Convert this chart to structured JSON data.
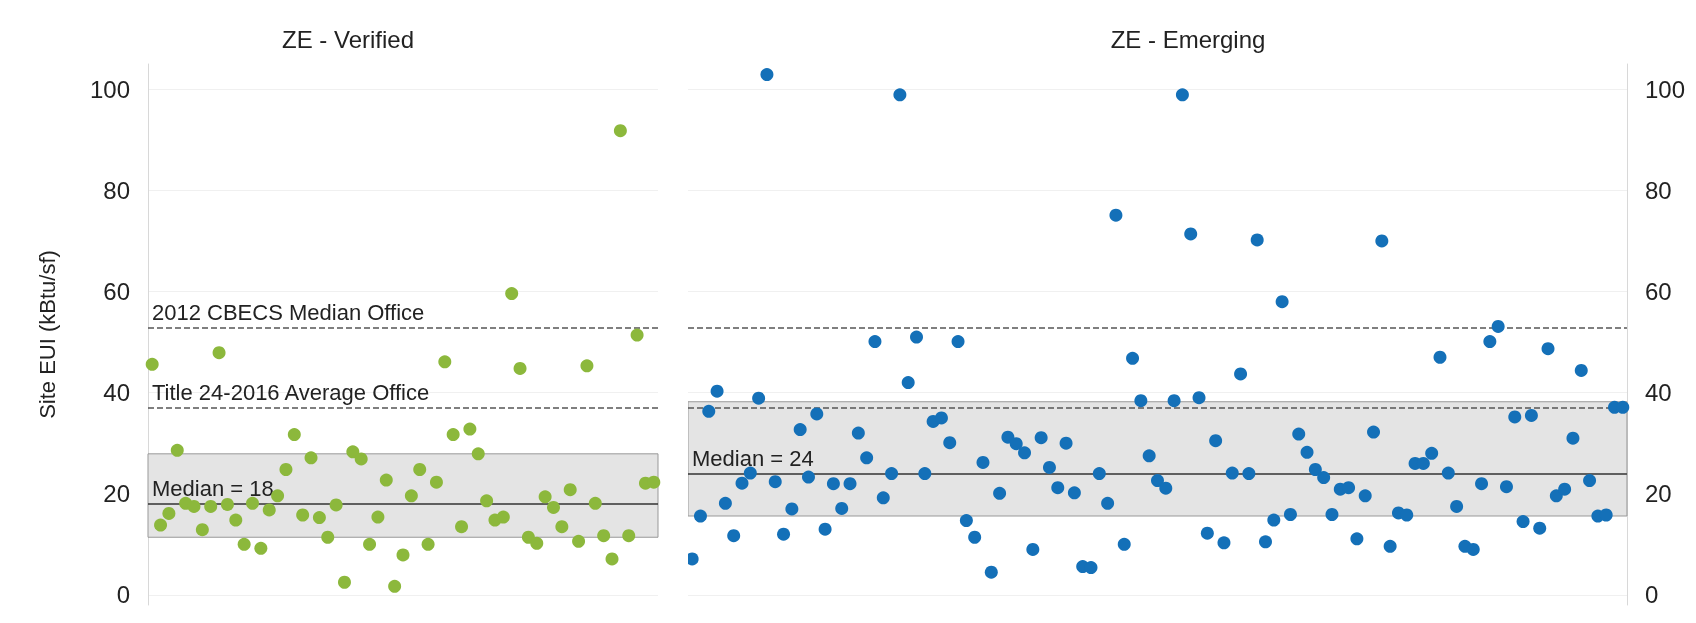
{
  "chart_data": [
    {
      "type": "scatter",
      "title": "ZE - Verified",
      "ylabel": "Site EUI (kBtu/sf)",
      "ylim": [
        -2,
        105
      ],
      "yticks": [
        0,
        20,
        40,
        60,
        80,
        100
      ],
      "grid": "y",
      "tick_labels": "y",
      "marker": "circle",
      "categories": [
        null,
        null,
        null,
        null,
        null,
        null,
        null,
        null,
        null,
        null,
        null,
        null,
        null,
        null,
        null,
        null,
        null,
        null,
        null,
        null,
        null,
        null,
        null,
        null,
        null,
        null,
        null,
        null,
        null,
        null,
        null,
        null,
        null,
        null,
        null,
        null,
        null,
        null,
        null,
        null,
        null,
        null,
        null,
        null,
        null,
        null,
        null,
        null,
        null,
        null,
        null,
        null,
        null,
        null,
        null,
        null,
        null,
        null,
        null,
        null,
        null
      ],
      "series": [
        {
          "color": "#8cb83c",
          "values": [
            45.6,
            13.8,
            16.1,
            28.6,
            18.1,
            17.5,
            12.9,
            17.5,
            47.9,
            17.9,
            14.8,
            10,
            18.1,
            9.2,
            16.8,
            19.6,
            24.8,
            31.7,
            15.8,
            27.1,
            15.3,
            11.4,
            17.8,
            2.5,
            28.3,
            26.9,
            10,
            15.4,
            22.7,
            1.7,
            7.9,
            19.6,
            24.8,
            10,
            22.3,
            46.1,
            31.7,
            13.5,
            32.8,
            27.9,
            18.6,
            14.8,
            15.4,
            59.6,
            44.8,
            11.4,
            10.2,
            19.4,
            17.3,
            13.5,
            20.8,
            10.6,
            45.3,
            18.1,
            11.7,
            7.1,
            91.8,
            11.7,
            51.4,
            22.1,
            22.3
          ]
        }
      ],
      "ref_lines": [
        {
          "axis": "y",
          "value": 52.9,
          "label": "2012 CBECS Median Office",
          "line_style": "dashed",
          "color": "#555555"
        },
        {
          "axis": "y",
          "value": 37.1,
          "label": "Title 24-2016 Average Office",
          "line_style": "dashed",
          "color": "#555555"
        },
        {
          "axis": "y",
          "value": 18,
          "label": "Median = 18",
          "line_style": "solid",
          "color": "#333333"
        }
      ],
      "bands": [
        {
          "axis": "y",
          "from": 11.4,
          "to": 27.9,
          "color": "#e4e4e4"
        }
      ]
    },
    {
      "type": "scatter",
      "title": "ZE - Emerging",
      "ylim": [
        -2,
        105
      ],
      "yticks": [
        0,
        20,
        40,
        60,
        80,
        100
      ],
      "grid": "y",
      "tick_labels": "y",
      "marker": "circle",
      "categories": [
        null,
        null,
        null,
        null,
        null,
        null,
        null,
        null,
        null,
        null,
        null,
        null,
        null,
        null,
        null,
        null,
        null,
        null,
        null,
        null,
        null,
        null,
        null,
        null,
        null,
        null,
        null,
        null,
        null,
        null,
        null,
        null,
        null,
        null,
        null,
        null,
        null,
        null,
        null,
        null,
        null,
        null,
        null,
        null,
        null,
        null,
        null,
        null,
        null,
        null,
        null,
        null,
        null,
        null,
        null,
        null,
        null,
        null,
        null,
        null,
        null,
        null,
        null,
        null,
        null,
        null,
        null,
        null,
        null,
        null,
        null,
        null,
        null,
        null,
        null,
        null,
        null,
        null,
        null,
        null,
        null,
        null,
        null,
        null,
        null,
        null,
        null,
        null,
        null,
        null,
        null,
        null,
        null,
        null,
        null,
        null,
        null,
        null,
        null,
        null,
        null,
        null,
        null,
        null,
        null,
        null,
        null,
        null,
        null,
        null,
        null,
        null,
        null
      ],
      "series": [
        {
          "color": "#1470b8",
          "values": [
            7.1,
            15.6,
            36.3,
            40.3,
            18.1,
            11.7,
            22.1,
            24.1,
            38.9,
            102.9,
            22.4,
            12.0,
            17.0,
            32.7,
            23.3,
            35.8,
            13.0,
            22.0,
            17.1,
            22.0,
            32.0,
            27.1,
            50.1,
            19.2,
            24.0,
            98.9,
            42.0,
            51.0,
            24.0,
            34.3,
            35.0,
            30.1,
            50.1,
            14.7,
            11.4,
            26.2,
            4.5,
            20.1,
            31.2,
            29.9,
            28.1,
            9.0,
            31.1,
            25.2,
            21.2,
            30.0,
            20.2,
            5.6,
            5.4,
            24.0,
            18.1,
            75.1,
            10.0,
            46.8,
            38.4,
            27.5,
            22.6,
            21.1,
            38.4,
            98.9,
            71.4,
            39.0,
            12.2,
            30.5,
            10.3,
            24.1,
            43.7,
            24.0,
            70.2,
            10.5,
            14.8,
            58.0,
            15.9,
            31.8,
            28.2,
            24.8,
            23.2,
            15.9,
            20.9,
            21.2,
            11.1,
            19.6,
            32.2,
            70.0,
            9.6,
            16.2,
            15.8,
            26.0,
            26.0,
            28.0,
            47.0,
            24.1,
            17.5,
            9.6,
            9.0,
            22.0,
            50.1,
            53.1,
            21.4,
            35.2,
            14.5,
            35.5,
            13.2,
            48.7,
            19.6,
            20.9,
            31.0,
            44.4,
            22.6,
            15.6,
            15.8,
            37.1,
            37.1
          ]
        }
      ],
      "ref_lines": [
        {
          "axis": "y",
          "value": 52.9,
          "line_style": "dashed",
          "color": "#555555"
        },
        {
          "axis": "y",
          "value": 37.1,
          "line_style": "dashed",
          "color": "#555555"
        },
        {
          "axis": "y",
          "value": 24,
          "label": "Median = 24",
          "line_style": "solid",
          "color": "#333333"
        }
      ],
      "bands": [
        {
          "axis": "y",
          "from": 15.6,
          "to": 38.2,
          "color": "#e4e4e4"
        }
      ]
    }
  ]
}
